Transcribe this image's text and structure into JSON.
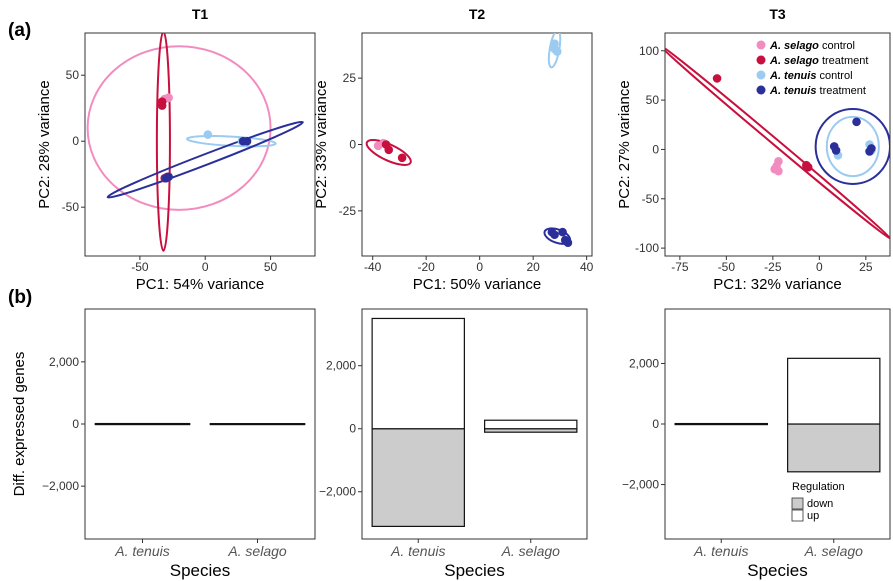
{
  "panel_labels": {
    "a": "(a)",
    "b": "(b)"
  },
  "chart_data": [
    {
      "type": "scatter",
      "panel": "a",
      "title": "T1",
      "xlabel": "PC1: 54% variance",
      "ylabel": "PC2: 28% variance",
      "xlim": [
        -92,
        84
      ],
      "ylim": [
        -87,
        82
      ],
      "xticks": [
        -50,
        0,
        50
      ],
      "yticks": [
        -50,
        0,
        50
      ],
      "groups": [
        {
          "name": "A. selago control",
          "color": "#f28cc0",
          "points": [
            [
              -28,
              33
            ],
            [
              -31,
              32
            ]
          ],
          "ellipse": {
            "cx": -20,
            "cy": 10,
            "rx": 70,
            "ry": 62,
            "angle": 0
          }
        },
        {
          "name": "A. selago treatment",
          "color": "#c8103e",
          "points": [
            [
              -33,
              30
            ],
            [
              -33,
              27
            ],
            [
              -29,
              -27
            ],
            [
              -31,
              -28
            ]
          ],
          "ellipse": {
            "cx": -32,
            "cy": 0,
            "rx": 5,
            "ry": 83,
            "angle": 0
          }
        },
        {
          "name": "A. tenuis control",
          "color": "#9bcbf0",
          "points": [
            [
              2,
              5
            ],
            [
              28,
              0
            ],
            [
              30,
              0
            ]
          ],
          "ellipse": {
            "cx": 20,
            "cy": 0,
            "rx": 34,
            "ry": 3.5,
            "angle": -3
          }
        },
        {
          "name": "A. tenuis treatment",
          "color": "#2a2f9a",
          "points": [
            [
              -28,
              -27
            ],
            [
              -30,
              -28
            ],
            [
              29,
              0
            ],
            [
              32,
              0
            ]
          ],
          "ellipse": {
            "cx": 0,
            "cy": -14,
            "rx": 80,
            "ry": 4,
            "angle": 21
          }
        }
      ]
    },
    {
      "type": "scatter",
      "panel": "a",
      "title": "T2",
      "xlabel": "PC1: 50% variance",
      "ylabel": "PC2: 33% variance",
      "xlim": [
        -44,
        42
      ],
      "ylim": [
        -42,
        42
      ],
      "xticks": [
        -40,
        -20,
        0,
        20,
        40
      ],
      "yticks": [
        -25,
        0,
        25
      ],
      "groups": [
        {
          "name": "A. selago control",
          "color": "#f28cc0",
          "points": [
            [
              -38,
              -0.5
            ],
            [
              -36,
              0.5
            ]
          ]
        },
        {
          "name": "A. selago treatment",
          "color": "#c8103e",
          "points": [
            [
              -35,
              0
            ],
            [
              -34,
              -2
            ],
            [
              -29,
              -5
            ]
          ],
          "ellipse": {
            "cx": -34,
            "cy": -3,
            "rx": 9,
            "ry": 3,
            "angle": -25
          }
        },
        {
          "name": "A. tenuis control",
          "color": "#9bcbf0",
          "points": [
            [
              28,
              36
            ],
            [
              28,
              38
            ],
            [
              29,
              35
            ]
          ],
          "ellipse": {
            "cx": 28,
            "cy": 36,
            "rx": 7,
            "ry": 1.8,
            "angle": 80
          }
        },
        {
          "name": "A. tenuis treatment",
          "color": "#2a2f9a",
          "points": [
            [
              27,
              -33
            ],
            [
              28,
              -34
            ],
            [
              31,
              -33
            ],
            [
              32,
              -36
            ],
            [
              33,
              -37
            ]
          ],
          "ellipse": {
            "cx": 29,
            "cy": -34.5,
            "rx": 5,
            "ry": 2.5,
            "angle": -20
          }
        }
      ]
    },
    {
      "type": "scatter",
      "panel": "a",
      "title": "T3",
      "xlabel": "PC1: 32% variance",
      "ylabel": "PC2: 27% variance",
      "xlim": [
        -83,
        38
      ],
      "ylim": [
        -108,
        118
      ],
      "xticks": [
        -75,
        -50,
        -25,
        0,
        25
      ],
      "yticks": [
        -100,
        -50,
        0,
        50,
        100
      ],
      "legend": {
        "placement": "top-right"
      },
      "groups": [
        {
          "name": "A. selago control",
          "color": "#f28cc0",
          "points": [
            [
              -22,
              -12
            ],
            [
              -23,
              -17
            ],
            [
              -24,
              -20
            ],
            [
              -22,
              -22
            ]
          ]
        },
        {
          "name": "A. selago treatment",
          "color": "#c8103e",
          "points": [
            [
              -55,
              72
            ],
            [
              -7,
              -16
            ],
            [
              -6,
              -18
            ]
          ],
          "ellipse": {
            "cx": -24,
            "cy": 8,
            "rx": 82,
            "ry": 3,
            "angle": -40
          }
        },
        {
          "name": "A. tenuis control",
          "color": "#9bcbf0",
          "points": [
            [
              10,
              -6
            ],
            [
              27,
              5
            ],
            [
              28,
              -1
            ]
          ],
          "ellipse": {
            "cx": 18,
            "cy": 3,
            "rx": 14,
            "ry": 30,
            "angle": 0
          }
        },
        {
          "name": "A. tenuis treatment",
          "color": "#2a2f9a",
          "points": [
            [
              8,
              3
            ],
            [
              9,
              -1
            ],
            [
              20,
              28
            ],
            [
              27,
              -2
            ],
            [
              28,
              1
            ]
          ],
          "ellipse": {
            "cx": 18,
            "cy": 3,
            "rx": 20,
            "ry": 38,
            "angle": 0
          }
        }
      ]
    },
    {
      "type": "bar",
      "panel": "b",
      "subpanel": "T1",
      "ylabel": "Diff. expressed genes",
      "xlabel": "Species",
      "categories": [
        "A. tenuis",
        "A. selago"
      ],
      "ylim": [
        -3700,
        3700
      ],
      "yticks": [
        -2000,
        0,
        2000
      ],
      "yticklabels": [
        "−2,000",
        "0",
        "2,000"
      ],
      "series": [
        {
          "name": "down",
          "values": [
            -15,
            -12
          ]
        },
        {
          "name": "up",
          "values": [
            15,
            12
          ]
        }
      ]
    },
    {
      "type": "bar",
      "panel": "b",
      "subpanel": "T2",
      "ylabel": "",
      "xlabel": "Species",
      "categories": [
        "A. tenuis",
        "A. selago"
      ],
      "ylim": [
        -3500,
        3800
      ],
      "yticks": [
        -2000,
        0,
        2000
      ],
      "yticklabels": [
        "−2,000",
        "0",
        "2,000"
      ],
      "series": [
        {
          "name": "down",
          "values": [
            -3100,
            -110
          ]
        },
        {
          "name": "up",
          "values": [
            3500,
            270
          ]
        }
      ]
    },
    {
      "type": "bar",
      "panel": "b",
      "subpanel": "T3",
      "ylabel": "",
      "xlabel": "Species",
      "categories": [
        "A. tenuis",
        "A. selago"
      ],
      "ylim": [
        -3800,
        3800
      ],
      "yticks": [
        -2000,
        0,
        2000
      ],
      "yticklabels": [
        "−2,000",
        "0",
        "2,000"
      ],
      "legend": {
        "title": "Regulation",
        "placement": "bottom-right"
      },
      "series": [
        {
          "name": "down",
          "values": [
            -15,
            -1580
          ]
        },
        {
          "name": "up",
          "values": [
            15,
            2170
          ]
        }
      ]
    }
  ]
}
